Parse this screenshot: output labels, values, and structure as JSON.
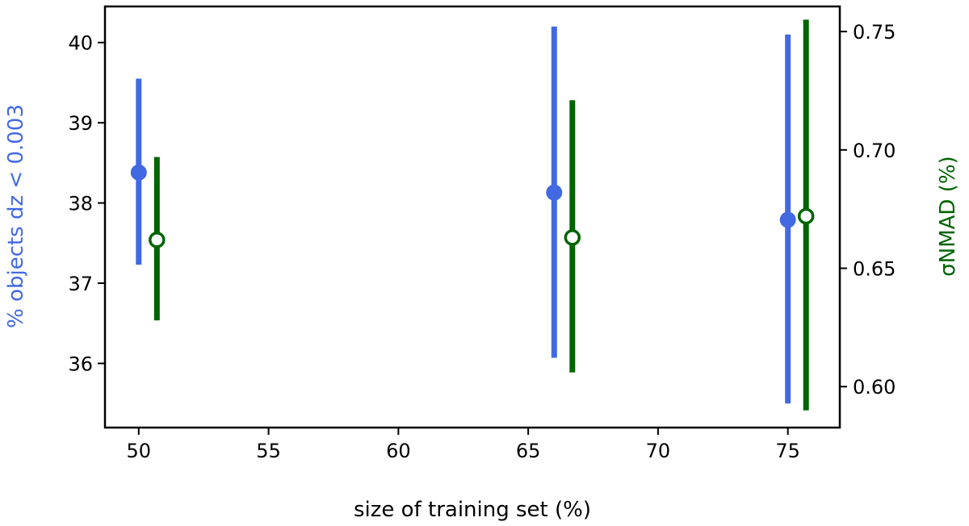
{
  "chart_data": {
    "type": "scatter",
    "xlabel": "size of training set (%)",
    "ylabel_left": "% objects dz < 0.003",
    "ylabel_right": "σNMAD (%)",
    "xlim": [
      48.7,
      77.0
    ],
    "ylim_left": [
      35.2,
      40.45
    ],
    "ylim_right": [
      0.5827,
      0.7606
    ],
    "x_ticks": [
      50,
      55,
      60,
      65,
      70,
      75
    ],
    "y_ticks_left": [
      36,
      37,
      38,
      39,
      40
    ],
    "y_ticks_right": [
      0.6,
      0.65,
      0.7,
      0.75
    ],
    "y_tick_labels_right": [
      "0.60",
      "0.65",
      "0.70",
      "0.75"
    ],
    "grid": false,
    "series": [
      {
        "axis": "left",
        "color": "#4169e1",
        "marker": "filled-circle",
        "points": [
          {
            "x": 50,
            "y": 38.38,
            "ylow": 37.23,
            "yhigh": 39.55
          },
          {
            "x": 66,
            "y": 38.13,
            "ylow": 36.07,
            "yhigh": 40.2
          },
          {
            "x": 75,
            "y": 37.79,
            "ylow": 35.5,
            "yhigh": 40.1
          }
        ]
      },
      {
        "axis": "right",
        "color": "#006400",
        "marker": "open-circle",
        "points": [
          {
            "x": 50.7,
            "y": 0.662,
            "ylow": 0.628,
            "yhigh": 0.697
          },
          {
            "x": 66.7,
            "y": 0.663,
            "ylow": 0.606,
            "yhigh": 0.721
          },
          {
            "x": 75.7,
            "y": 0.672,
            "ylow": 0.59,
            "yhigh": 0.755
          }
        ]
      }
    ]
  }
}
